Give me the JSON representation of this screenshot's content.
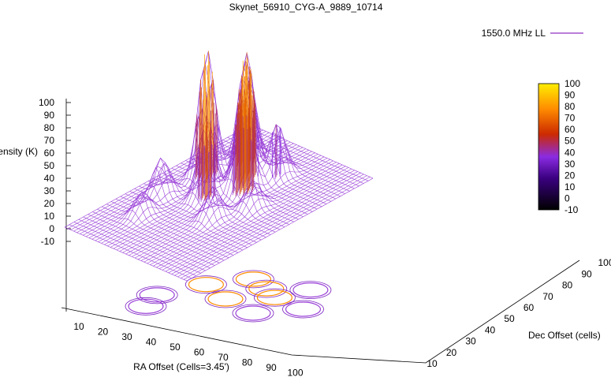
{
  "chart_data": {
    "type": "surface3d",
    "title": "Skynet_56910_CYG-A_9889_10714",
    "xlabel": "RA Offset (Cells=3.45')",
    "ylabel": "Dec Offset (cells)",
    "zlabel": "Intensity (K)",
    "xlim": [
      0,
      100
    ],
    "ylim": [
      10,
      100
    ],
    "zlim": [
      -10,
      100
    ],
    "x_ticks": [
      10,
      20,
      30,
      40,
      50,
      60,
      70,
      80,
      90,
      100
    ],
    "y_ticks": [
      10,
      20,
      30,
      40,
      50,
      60,
      70,
      80,
      90,
      100
    ],
    "z_ticks": [
      -10,
      0,
      10,
      20,
      30,
      40,
      50,
      60,
      70,
      80,
      90,
      100
    ],
    "colorbar": {
      "range": [
        -10,
        100
      ],
      "ticks": [
        -10,
        0,
        10,
        20,
        30,
        40,
        50,
        60,
        70,
        80,
        90,
        100
      ],
      "colors": [
        "#000000",
        "#3a0080",
        "#8a2be2",
        "#cc2a00",
        "#ff8c00",
        "#ffee00"
      ]
    },
    "legend": {
      "position": "top-right",
      "entries": [
        {
          "name": "1550.0 MHz LL",
          "color": "#9030c0"
        }
      ]
    },
    "peaks": [
      {
        "x": 22,
        "y": 62,
        "z": 100
      },
      {
        "x": 30,
        "y": 78,
        "z": 82
      },
      {
        "x": 42,
        "y": 70,
        "z": 100
      },
      {
        "x": 52,
        "y": 62,
        "z": 80
      },
      {
        "x": 40,
        "y": 50,
        "z": 65
      },
      {
        "x": 55,
        "y": 78,
        "z": 42
      },
      {
        "x": 18,
        "y": 40,
        "z": 30
      },
      {
        "x": 70,
        "y": 55,
        "z": 22
      },
      {
        "x": 60,
        "y": 40,
        "z": 25
      },
      {
        "x": 25,
        "y": 25,
        "z": 18
      }
    ],
    "grid": false
  }
}
